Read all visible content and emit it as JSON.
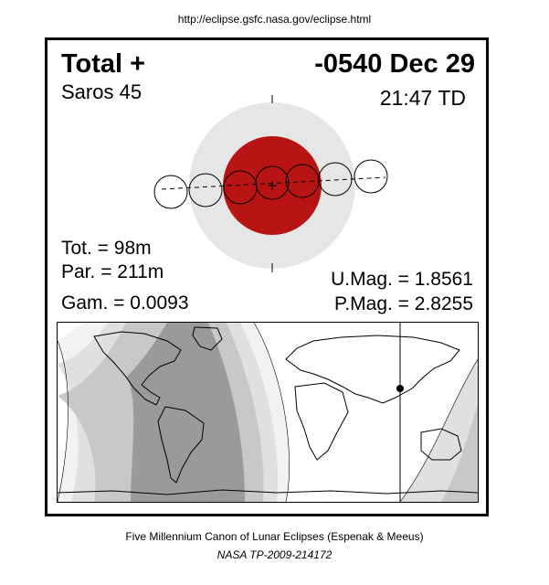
{
  "header": {
    "url": "http://eclipse.gsfc.nasa.gov/eclipse.html"
  },
  "eclipse": {
    "type": "Total  +",
    "saros": "Saros  45",
    "date": "-0540 Dec 29",
    "time": "21:47 TD",
    "total_duration": "Tot. =  98m",
    "partial_duration": "Par. = 211m",
    "gamma": "Gam. = 0.0093",
    "umbral_magnitude": "U.Mag. = 1.8561",
    "penumbral_magnitude": "P.Mag. = 2.8255"
  },
  "colors": {
    "penumbra": "#e6e6e6",
    "umbra": "#b81414",
    "map_zone_dark": "#9a9a9a",
    "map_zone_light": "#f2f2f2"
  },
  "footer": {
    "line1": "Five Millennium Canon of Lunar Eclipses (Espenak & Meeus)",
    "line2": "NASA TP-2009-214172"
  }
}
